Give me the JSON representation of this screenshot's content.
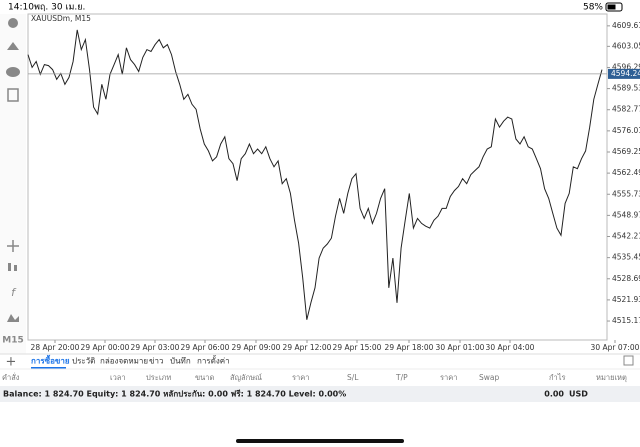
{
  "status_bar": {
    "time": "14:10",
    "date": "พฤ. 30 เม.ย.",
    "battery": "58%"
  },
  "toolbar": {
    "timeframe": "M15"
  },
  "chart_data": {
    "type": "line",
    "title": "XAUUSDm, M15",
    "x_labels": [
      "28 Apr 20:00",
      "29 Apr 00:00",
      "29 Apr 03:00",
      "29 Apr 06:00",
      "29 Apr 09:00",
      "29 Apr 12:00",
      "29 Apr 15:00",
      "29 Apr 18:00",
      "30 Apr 01:00",
      "30 Apr 04:00",
      "30 Apr 07:00"
    ],
    "color": "#222222",
    "values": [
      4600.4,
      4596.3,
      4598.2,
      4594.1,
      4597.2,
      4596.9,
      4595.6,
      4592.5,
      4594.4,
      4590.9,
      4593.1,
      4598.2,
      4608.3,
      4602.0,
      4605.2,
      4595.6,
      4583.6,
      4581.4,
      4590.9,
      4586.1,
      4594.1,
      4597.2,
      4600.4,
      4594.1,
      4602.6,
      4598.8,
      4597.2,
      4595.0,
      4599.5,
      4602.0,
      4601.4,
      4603.6,
      4605.2,
      4602.6,
      4603.6,
      4600.4,
      4595.0,
      4590.9,
      4586.1,
      4587.7,
      4584.5,
      4582.9,
      4576.6,
      4571.8,
      4569.6,
      4566.4,
      4567.7,
      4571.8,
      4574.1,
      4567.1,
      4565.5,
      4560.1,
      4567.1,
      4568.7,
      4571.8,
      4568.7,
      4570.2,
      4568.7,
      4570.9,
      4567.1,
      4564.5,
      4566.4,
      4559.1,
      4560.7,
      4556.0,
      4547.4,
      4540.1,
      4529.0,
      4515.6,
      4521.0,
      4525.8,
      4535.3,
      4538.5,
      4539.8,
      4541.7,
      4548.7,
      4554.4,
      4549.6,
      4556.0,
      4560.7,
      4562.3,
      4551.2,
      4548.0,
      4551.2,
      4546.4,
      4549.6,
      4554.4,
      4557.5,
      4525.8,
      4535.3,
      4521.0,
      4538.5,
      4547.4,
      4556.0,
      4544.9,
      4548.0,
      4546.4,
      4545.5,
      4544.9,
      4547.4,
      4548.7,
      4551.2,
      4551.2,
      4555.0,
      4556.9,
      4558.2,
      4560.7,
      4559.1,
      4562.0,
      4563.3,
      4564.5,
      4567.7,
      4570.2,
      4570.9,
      4579.8,
      4577.2,
      4579.1,
      4580.4,
      4579.8,
      4573.4,
      4571.8,
      4574.1,
      4570.9,
      4570.2,
      4567.1,
      4563.9,
      4557.5,
      4554.4,
      4549.6,
      4544.9,
      4542.6,
      4552.8,
      4556.0,
      4564.5,
      4563.9,
      4567.1,
      4569.6,
      4577.2,
      4586.1,
      4590.9,
      4595.6
    ],
    "current_price": {
      "value": 4594.24,
      "label": "4594.240"
    },
    "ylim": [
      4509.1,
      4613.4
    ],
    "yticks": [
      {
        "value": 4609.61,
        "label": "4609.610"
      },
      {
        "value": 4603.05,
        "label": "4603.050"
      },
      {
        "value": 4596.29,
        "label": "4596.290"
      },
      {
        "value": 4589.53,
        "label": "4589.530"
      },
      {
        "value": 4582.77,
        "label": "4582.770"
      },
      {
        "value": 4576.01,
        "label": "4576.010"
      },
      {
        "value": 4569.25,
        "label": "4569.250"
      },
      {
        "value": 4562.49,
        "label": "4562.490"
      },
      {
        "value": 4555.73,
        "label": "4555.730"
      },
      {
        "value": 4548.97,
        "label": "4548.970"
      },
      {
        "value": 4542.21,
        "label": "4542.210"
      },
      {
        "value": 4535.45,
        "label": "4535.450"
      },
      {
        "value": 4528.69,
        "label": "4528.690"
      },
      {
        "value": 4521.93,
        "label": "4521.930"
      },
      {
        "value": 4515.17,
        "label": "4515.170"
      }
    ],
    "grid": false
  },
  "tabs": [
    "การซื้อขาย",
    "ประวัติ",
    "กล่องจดหมาย",
    "ข่าว",
    "บันทึก",
    "การตั้งค่า"
  ],
  "table": {
    "headers": [
      "คำสั่ง",
      "เวลา",
      "ประเภท",
      "ขนาด",
      "สัญลักษณ์",
      "ราคา",
      "S/L",
      "T/P",
      "ราคา",
      "Swap",
      "กำไร",
      "หมายเหตุ"
    ]
  },
  "balance": {
    "text": "Balance: 1 824.70 Equity: 1 824.70 หลักประกัน: 0.00 ฟรี: 1 824.70 Level: 0.00%",
    "profit": "0.00",
    "currency": "USD"
  }
}
